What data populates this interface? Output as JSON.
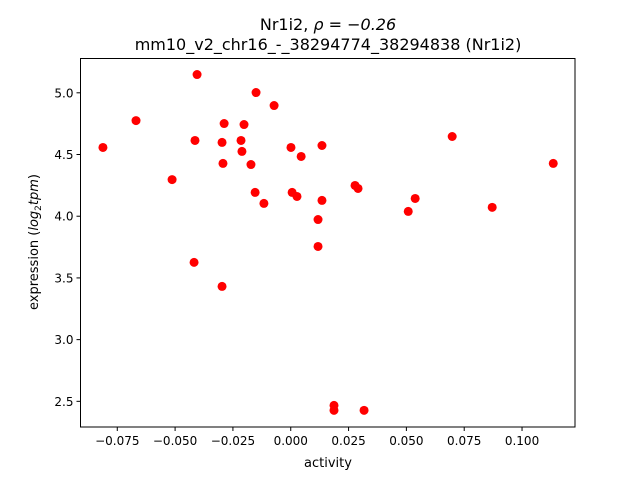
{
  "chart_data": {
    "type": "scatter",
    "title_line1_prefix": "Nr1i2, ",
    "title_line1_rho": "ρ = −0.26",
    "title_line2": "mm10_v2_chr16_-_38294774_38294838 (Nr1i2)",
    "xlabel": "activity",
    "ylabel_prefix": "expression (",
    "ylabel_log": "log",
    "ylabel_sub": "2",
    "ylabel_tpm": "tpm",
    "ylabel_suffix": ")",
    "xlim": [
      -0.0909,
      0.1229
    ],
    "ylim": [
      2.292,
      5.278
    ],
    "xticks": [
      {
        "value": -0.075,
        "label": "−0.075"
      },
      {
        "value": -0.05,
        "label": "−0.050"
      },
      {
        "value": -0.025,
        "label": "−0.025"
      },
      {
        "value": 0.0,
        "label": "0.000"
      },
      {
        "value": 0.025,
        "label": "0.025"
      },
      {
        "value": 0.05,
        "label": "0.050"
      },
      {
        "value": 0.075,
        "label": "0.075"
      },
      {
        "value": 0.1,
        "label": "0.100"
      }
    ],
    "yticks": [
      {
        "value": 2.5,
        "label": "2.5"
      },
      {
        "value": 3.0,
        "label": "3.0"
      },
      {
        "value": 3.5,
        "label": "3.5"
      },
      {
        "value": 4.0,
        "label": "4.0"
      },
      {
        "value": 4.5,
        "label": "4.5"
      },
      {
        "value": 5.0,
        "label": "5.0"
      }
    ],
    "grid": false,
    "marker_color": "#ff0000",
    "points": [
      [
        -0.0812,
        4.557
      ],
      [
        -0.0669,
        4.775
      ],
      [
        -0.0405,
        5.148
      ],
      [
        -0.0513,
        4.297
      ],
      [
        -0.0414,
        4.614
      ],
      [
        -0.0418,
        3.626
      ],
      [
        -0.0297,
        3.431
      ],
      [
        -0.0288,
        4.751
      ],
      [
        -0.0297,
        4.598
      ],
      [
        -0.0293,
        4.428
      ],
      [
        -0.0215,
        4.614
      ],
      [
        -0.0202,
        4.743
      ],
      [
        -0.0211,
        4.525
      ],
      [
        -0.0172,
        4.419
      ],
      [
        -0.015,
        5.002
      ],
      [
        -0.0154,
        4.193
      ],
      [
        -0.0116,
        4.104
      ],
      [
        -0.0072,
        4.897
      ],
      [
        0.0001,
        4.557
      ],
      [
        0.0006,
        4.193
      ],
      [
        0.0027,
        4.16
      ],
      [
        0.0045,
        4.484
      ],
      [
        0.0118,
        3.973
      ],
      [
        0.0118,
        3.755
      ],
      [
        0.0135,
        4.573
      ],
      [
        0.0135,
        4.128
      ],
      [
        0.0187,
        2.467
      ],
      [
        0.0187,
        2.427
      ],
      [
        0.0278,
        4.249
      ],
      [
        0.0291,
        4.225
      ],
      [
        0.0317,
        2.427
      ],
      [
        0.0508,
        4.039
      ],
      [
        0.0538,
        4.144
      ],
      [
        0.0698,
        4.646
      ],
      [
        0.0871,
        4.072
      ],
      [
        0.1135,
        4.428
      ]
    ]
  }
}
